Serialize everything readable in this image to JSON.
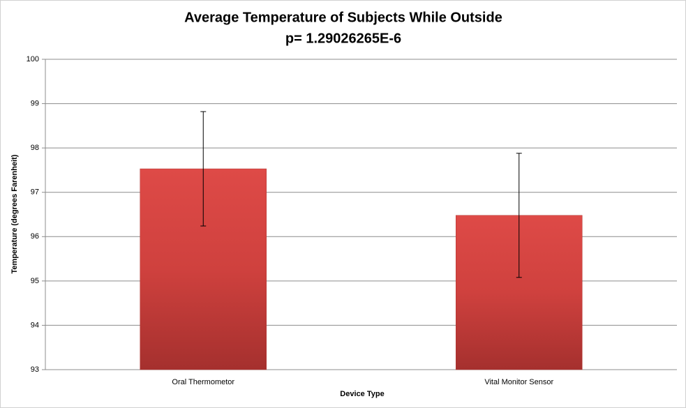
{
  "chart_data": {
    "type": "bar",
    "title": "Average Temperature of Subjects While Outside",
    "subtitle": "p= 1.29026265E-6",
    "x_label": "Device Type",
    "y_label": "Temperature (degrees Farenheit)",
    "categories": [
      "Oral Thermometor",
      "Vital Monitor Sensor"
    ],
    "values": [
      97.53,
      96.48
    ],
    "errors": [
      1.29,
      1.4
    ],
    "color": "#d4403d",
    "ylim": [
      93,
      100
    ],
    "yticks": [
      93,
      94,
      95,
      96,
      97,
      98,
      99,
      100
    ],
    "grid": true
  }
}
